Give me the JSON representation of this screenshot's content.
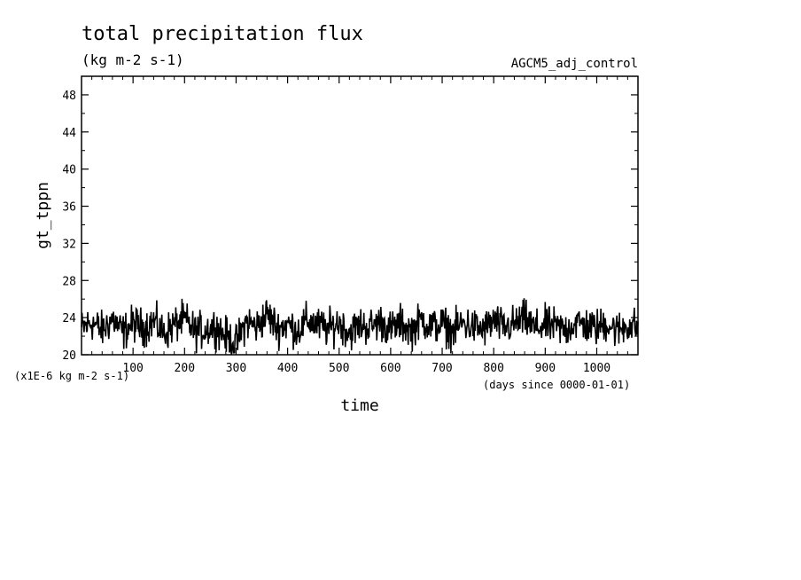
{
  "chart_data": {
    "type": "line",
    "title": "total precipitation flux",
    "subtitle": "(kg m-2 s-1)",
    "run_label": "AGCM5_adj_control",
    "xlabel": "time",
    "x_unit_note": "(days since 0000-01-01)",
    "ylabel": "gt_tppn",
    "y_unit_note": "(x1E-6 kg m-2 s-1)",
    "xlim": [
      0,
      1080
    ],
    "ylim": [
      20,
      50
    ],
    "x_ticks": [
      100,
      200,
      300,
      400,
      500,
      600,
      700,
      800,
      900,
      1000
    ],
    "y_ticks": [
      20,
      24,
      28,
      32,
      36,
      40,
      44,
      48
    ],
    "grid": false,
    "series": [
      {
        "x": [
          0,
          20,
          40,
          60,
          80,
          100,
          120,
          140,
          160,
          180,
          200,
          220,
          240,
          260,
          280,
          300,
          320,
          340,
          360,
          380,
          400,
          420,
          440,
          460,
          480,
          500,
          520,
          540,
          560,
          580,
          600,
          620,
          640,
          660,
          680,
          700,
          720,
          740,
          760,
          780,
          800,
          820,
          840,
          860,
          880,
          900,
          920,
          940,
          960,
          980,
          1000,
          1020,
          1040,
          1060,
          1080
        ],
        "values": [
          22.8,
          23.5,
          22.6,
          23.9,
          22.4,
          23.4,
          22.9,
          23.6,
          22.3,
          23.2,
          23.8,
          22.5,
          22.7,
          23.1,
          22.0,
          21.2,
          23.6,
          23.0,
          24.4,
          22.9,
          23.3,
          22.6,
          23.7,
          23.1,
          22.8,
          23.5,
          22.4,
          23.2,
          23.0,
          23.6,
          22.7,
          23.4,
          22.6,
          23.8,
          23.0,
          23.3,
          22.5,
          23.4,
          23.0,
          22.7,
          23.6,
          22.9,
          23.3,
          23.9,
          22.8,
          23.2,
          23.0,
          22.7,
          23.5,
          23.1,
          22.9,
          23.4,
          22.6,
          23.2,
          23.0
        ],
        "spread": 1.8
      }
    ]
  }
}
